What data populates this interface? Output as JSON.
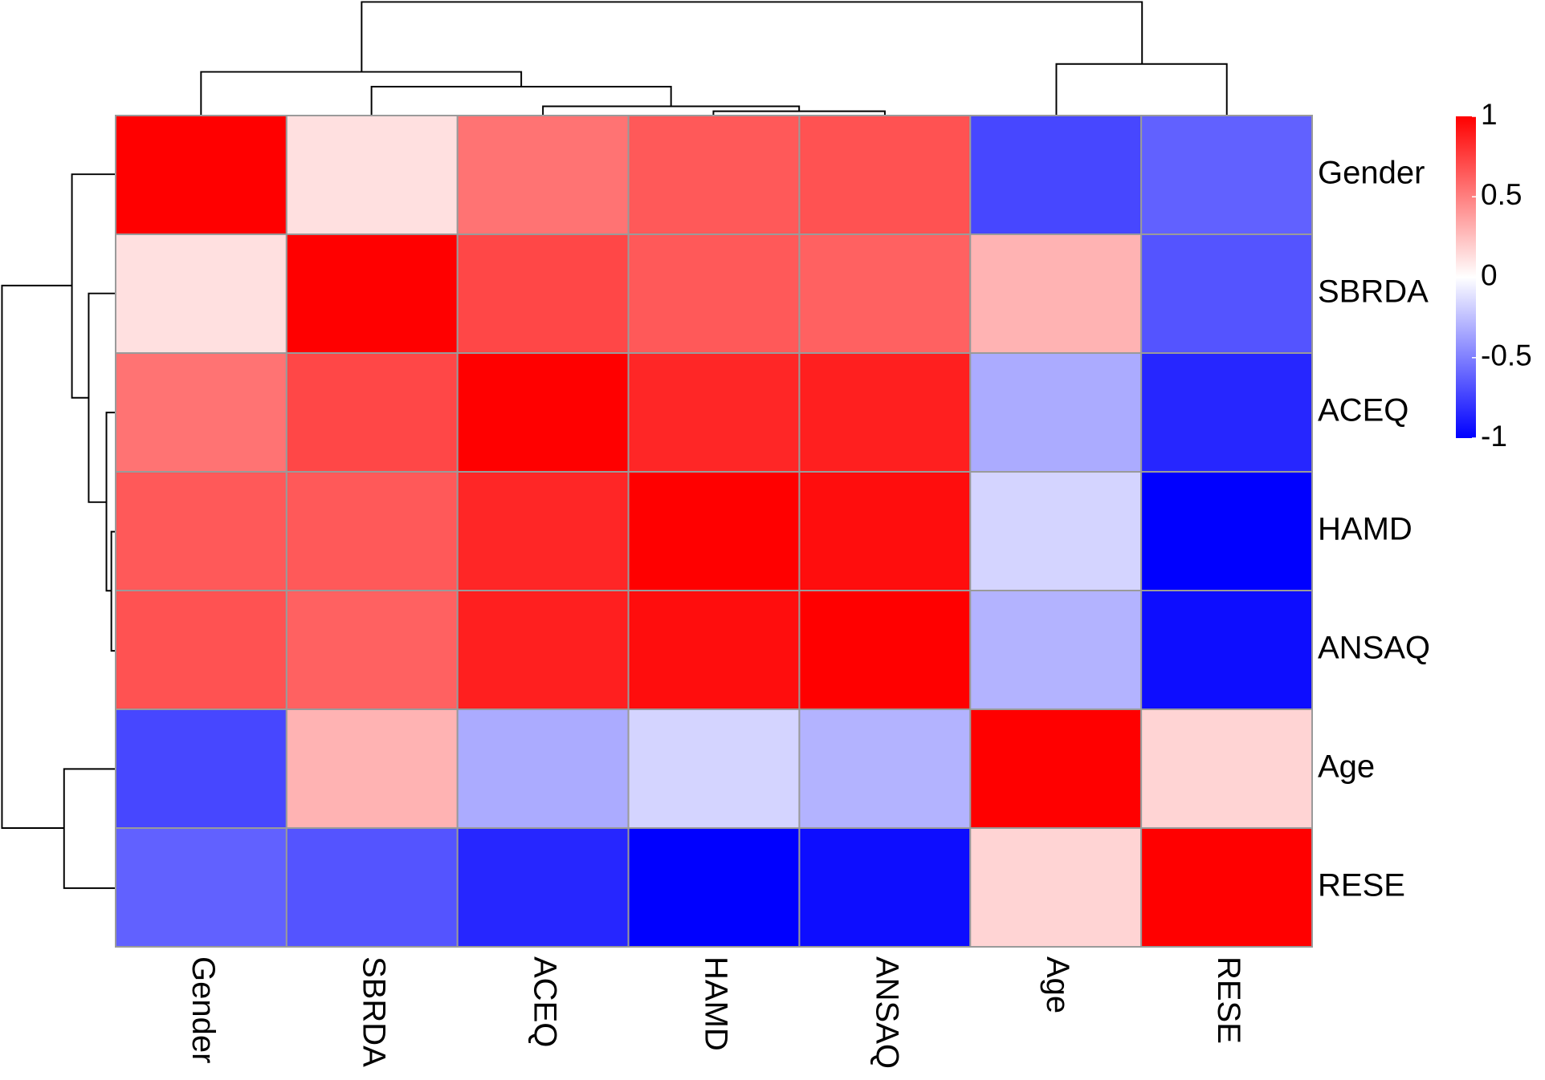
{
  "chart_data": {
    "type": "heatmap",
    "rows": [
      "Gender",
      "SBRDA",
      "ACEQ",
      "HAMD",
      "ANSAQ",
      "Age",
      "RESE"
    ],
    "columns": [
      "Gender",
      "SBRDA",
      "ACEQ",
      "HAMD",
      "ANSAQ",
      "Age",
      "RESE"
    ],
    "values": [
      [
        1,
        0.12,
        0.55,
        0.65,
        0.68,
        -0.72,
        -0.62
      ],
      [
        0.12,
        1,
        0.72,
        0.65,
        0.62,
        0.3,
        -0.67
      ],
      [
        0.55,
        0.72,
        1,
        0.85,
        0.88,
        -0.33,
        -0.85
      ],
      [
        0.65,
        0.65,
        0.85,
        1,
        0.95,
        -0.17,
        -1
      ],
      [
        0.68,
        0.62,
        0.88,
        0.95,
        1,
        -0.3,
        -0.95
      ],
      [
        -0.72,
        0.3,
        -0.33,
        -0.17,
        -0.3,
        1,
        0.17
      ],
      [
        -0.62,
        -0.67,
        -0.85,
        -1,
        -0.95,
        0.17,
        1
      ]
    ],
    "zlim": [
      -1,
      1
    ],
    "colormap": [
      "#0000ff",
      "#ffffff",
      "#ff0000"
    ],
    "colorbar_ticks": [
      1,
      0.5,
      0,
      -0.5,
      -1
    ]
  }
}
